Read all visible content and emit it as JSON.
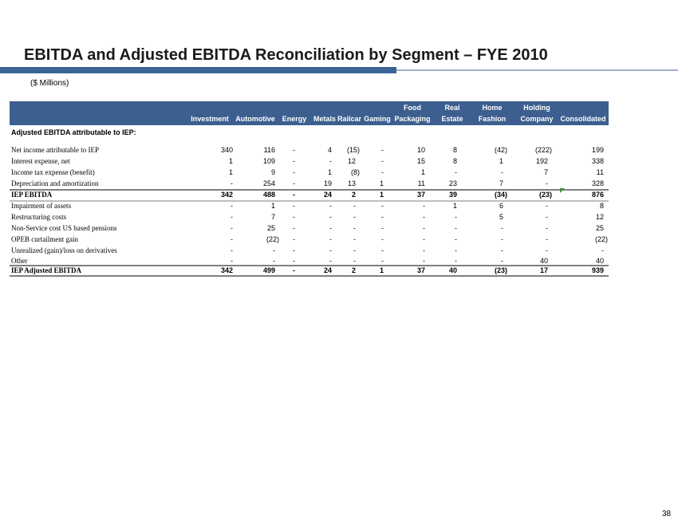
{
  "header": {
    "title": "EBITDA and Adjusted EBITDA Reconciliation by Segment – FYE 2010",
    "subtitle": "($ Millions)"
  },
  "table": {
    "columns": [
      [
        "Investment"
      ],
      [
        "Automotive"
      ],
      [
        "Energy"
      ],
      [
        "Metals"
      ],
      [
        "Railcar"
      ],
      [
        "Gaming"
      ],
      [
        "Food",
        "Packaging"
      ],
      [
        "Real",
        "Estate"
      ],
      [
        "Home",
        "Fashion"
      ],
      [
        "Holding",
        "Company"
      ],
      [
        "Consolidated"
      ]
    ],
    "section": "Adjusted EBITDA attributable to IEP:",
    "rows": [
      {
        "label": "Net income attributable to IEP",
        "values": [
          "340",
          "116",
          "-",
          "4",
          "(15)",
          "-",
          "10",
          "8",
          "(42)",
          "(222)",
          "199"
        ]
      },
      {
        "label": "Interest expense, net",
        "values": [
          "1",
          "109",
          "-",
          "-",
          "12",
          "-",
          "15",
          "8",
          "1",
          "192",
          "338"
        ]
      },
      {
        "label": "Income tax expense (benefit)",
        "values": [
          "1",
          "9",
          "-",
          "1",
          "(8)",
          "-",
          "1",
          "-",
          "-",
          "7",
          "11"
        ]
      },
      {
        "label": "Depreciation and amortization",
        "values": [
          "-",
          "254",
          "-",
          "19",
          "13",
          "1",
          "11",
          "23",
          "7",
          "-",
          "328"
        ]
      },
      {
        "label": "IEP EBITDA",
        "values": [
          "342",
          "488",
          "-",
          "24",
          "2",
          "1",
          "37",
          "39",
          "(34)",
          "(23)",
          "876"
        ]
      },
      {
        "label": "Impairment of assets",
        "values": [
          "-",
          "1",
          "-",
          "-",
          "-",
          "-",
          "-",
          "1",
          "6",
          "-",
          "8"
        ]
      },
      {
        "label": "Restructuring costs",
        "values": [
          "-",
          "7",
          "-",
          "-",
          "-",
          "-",
          "-",
          "-",
          "5",
          "-",
          "12"
        ]
      },
      {
        "label": "Non-Service cost US based pensions",
        "values": [
          "-",
          "25",
          "-",
          "-",
          "-",
          "-",
          "-",
          "-",
          "-",
          "-",
          "25"
        ]
      },
      {
        "label": "OPEB curtailment gain",
        "values": [
          "-",
          "(22)",
          "-",
          "-",
          "-",
          "-",
          "-",
          "-",
          "-",
          "-",
          "(22)"
        ]
      },
      {
        "label": "Unrealized (gain)/loss on derivatives",
        "values": [
          "-",
          "-",
          "-",
          "-",
          "-",
          "-",
          "-",
          "-",
          "-",
          "-",
          "-"
        ]
      },
      {
        "label": "Other",
        "values": [
          "-",
          "-",
          "-",
          "-",
          "-",
          "-",
          "-",
          "-",
          "-",
          "40",
          "40"
        ]
      },
      {
        "label": "IEP Adjusted EBITDA",
        "values": [
          "342",
          "499",
          "-",
          "24",
          "2",
          "1",
          "37",
          "40",
          "(23)",
          "17",
          "939"
        ]
      }
    ]
  },
  "footer": {
    "page": "38"
  }
}
